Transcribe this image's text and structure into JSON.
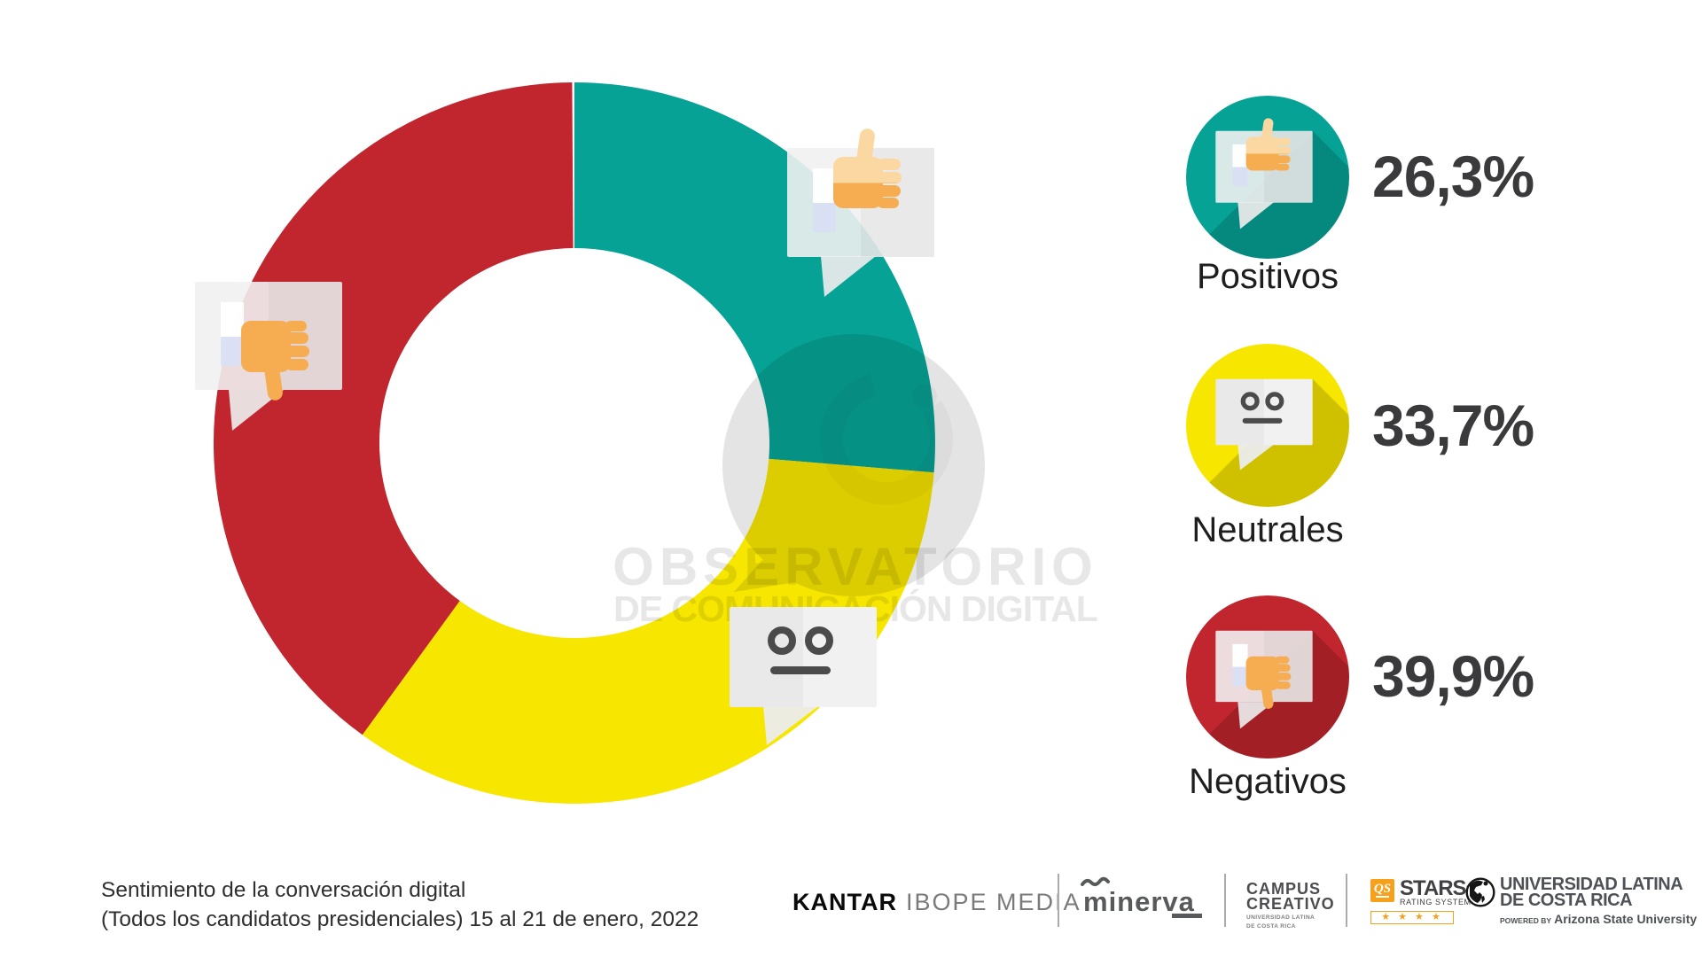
{
  "chart_data": {
    "type": "pie",
    "donut": true,
    "start_angle_deg_from_top_clockwise": 0,
    "inner_radius_ratio": 0.54,
    "series": [
      {
        "label": "Positivos",
        "value": 26.3,
        "display": "26,3%",
        "color": "#06A295",
        "icon": "thumbs-up-bubble"
      },
      {
        "label": "Neutrales",
        "value": 33.7,
        "display": "33,7%",
        "color": "#F7E600",
        "icon": "neutral-face-bubble"
      },
      {
        "label": "Negativos",
        "value": 39.9,
        "display": "39,9%",
        "color": "#C1252E",
        "icon": "thumbs-down-bubble"
      }
    ]
  },
  "watermark": {
    "line1": "OBSERVATORIO",
    "line2": "DE COMUNICACIÓN DIGITAL",
    "logo": "eye-speech-bubble"
  },
  "legend": {
    "items": [
      {
        "icon": "thumbs-up-bubble",
        "percent": "26,3%",
        "label": "Positivos"
      },
      {
        "icon": "neutral-face-bubble",
        "percent": "33,7%",
        "label": "Neutrales"
      },
      {
        "icon": "thumbs-down-bubble",
        "percent": "39,9%",
        "label": "Negativos"
      }
    ]
  },
  "caption": {
    "line1": "Sentimiento de la conversación digital",
    "line2": "(Todos los candidatos presidenciales) 15 al 21 de enero, 2022"
  },
  "footer": {
    "kantar": {
      "part1": "KANTAR",
      "part2": "IBOPE MEDIA"
    },
    "minerva": {
      "text": "minerva"
    },
    "campus": {
      "line1": "CAMPUS",
      "line2": "CREATIVO",
      "sub1": "UNIVERSIDAD LATINA",
      "sub2": "DE COSTA RICA"
    },
    "qs": {
      "badge": "QS",
      "title": "STARS",
      "tm": "™",
      "subtitle": "RATING SYSTEM",
      "stars": "★ ★ ★ ★",
      "star_count": 4
    },
    "latina": {
      "line1": "UNIVERSIDAD LATINA",
      "line2": "DE COSTA RICA",
      "powered_prefix": "POWERED BY",
      "powered_name": "Arizona State University"
    }
  },
  "colors": {
    "positive_teal": "#06A295",
    "neutral_yellow": "#F7E600",
    "negative_red": "#C1252E",
    "qs_orange": "#F6A01B",
    "percent_text": "#3A3A3C",
    "watermark_gray": "#E7E7E7",
    "hand_light": "#FBD7A2",
    "hand_dark": "#F6AC50",
    "sleeve_lavender": "#DADFF4"
  }
}
